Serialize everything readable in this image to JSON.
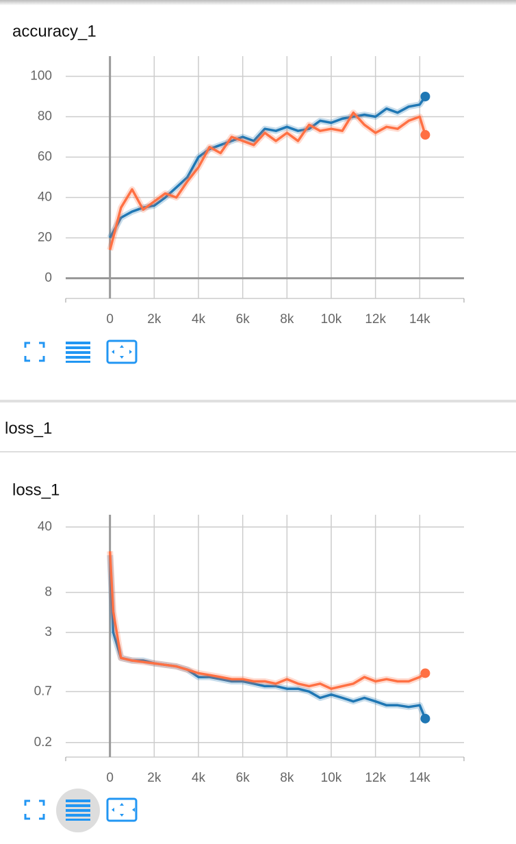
{
  "section_header": "loss_1",
  "chart_data": [
    {
      "type": "line",
      "title": "accuracy_1",
      "x": [
        0,
        500,
        1000,
        1500,
        2000,
        2500,
        3000,
        3500,
        4000,
        4500,
        5000,
        5500,
        6000,
        6500,
        7000,
        7500,
        8000,
        8500,
        9000,
        9500,
        10000,
        10500,
        11000,
        11500,
        12000,
        12500,
        13000,
        13500,
        14000,
        14250
      ],
      "series": [
        {
          "color": "#1f77b4",
          "values": [
            20,
            30,
            33,
            35,
            36,
            40,
            45,
            50,
            60,
            64,
            66,
            68,
            70,
            68,
            74,
            73,
            75,
            73,
            74,
            78,
            77,
            79,
            80,
            81,
            80,
            84,
            82,
            85,
            86,
            90
          ]
        },
        {
          "color": "#ff7043",
          "values": [
            14,
            35,
            44,
            34,
            38,
            42,
            40,
            48,
            55,
            65,
            62,
            70,
            68,
            66,
            72,
            68,
            72,
            68,
            76,
            73,
            74,
            73,
            82,
            76,
            72,
            75,
            74,
            78,
            80,
            71
          ]
        }
      ],
      "xlim": [
        -2000,
        16000
      ],
      "xticks": [
        {
          "value": 0,
          "label": "0"
        },
        {
          "value": 2000,
          "label": "2k"
        },
        {
          "value": 4000,
          "label": "4k"
        },
        {
          "value": 6000,
          "label": "6k"
        },
        {
          "value": 8000,
          "label": "8k"
        },
        {
          "value": 10000,
          "label": "10k"
        },
        {
          "value": 12000,
          "label": "12k"
        },
        {
          "value": 14000,
          "label": "14k"
        }
      ],
      "ylim": [
        -10,
        110
      ],
      "yticks": [
        0,
        20,
        40,
        60,
        80,
        100
      ],
      "log_y": false,
      "grid": true
    },
    {
      "type": "line",
      "title": "loss_1",
      "x": [
        0,
        150,
        500,
        1000,
        1500,
        2000,
        2500,
        3000,
        3500,
        4000,
        4500,
        5000,
        5500,
        6000,
        6500,
        7000,
        7500,
        8000,
        8500,
        9000,
        9500,
        10000,
        10500,
        11000,
        11500,
        12000,
        12500,
        13000,
        13500,
        14000,
        14250
      ],
      "series": [
        {
          "color": "#1f77b4",
          "values": [
            20,
            3,
            1.6,
            1.5,
            1.5,
            1.4,
            1.35,
            1.3,
            1.2,
            1.0,
            1.0,
            0.95,
            0.9,
            0.9,
            0.85,
            0.8,
            0.8,
            0.75,
            0.75,
            0.7,
            0.6,
            0.65,
            0.6,
            0.55,
            0.6,
            0.55,
            0.5,
            0.5,
            0.48,
            0.5,
            0.36
          ]
        },
        {
          "color": "#ff7043",
          "values": [
            22,
            5,
            1.6,
            1.5,
            1.45,
            1.4,
            1.35,
            1.3,
            1.2,
            1.1,
            1.05,
            1.0,
            0.95,
            0.95,
            0.9,
            0.9,
            0.85,
            0.95,
            0.85,
            0.8,
            0.85,
            0.75,
            0.8,
            0.85,
            1.0,
            0.9,
            0.95,
            0.9,
            0.9,
            1.0,
            1.1
          ]
        }
      ],
      "xlim": [
        -2000,
        16000
      ],
      "xticks": [
        {
          "value": 0,
          "label": "0"
        },
        {
          "value": 2000,
          "label": "2k"
        },
        {
          "value": 4000,
          "label": "4k"
        },
        {
          "value": 6000,
          "label": "6k"
        },
        {
          "value": 8000,
          "label": "8k"
        },
        {
          "value": 10000,
          "label": "10k"
        },
        {
          "value": 12000,
          "label": "12k"
        },
        {
          "value": 14000,
          "label": "14k"
        }
      ],
      "ylim": [
        0.14,
        54
      ],
      "yticks": [
        0.2,
        0.7,
        3,
        8,
        40
      ],
      "log_y": true,
      "grid": true
    }
  ]
}
